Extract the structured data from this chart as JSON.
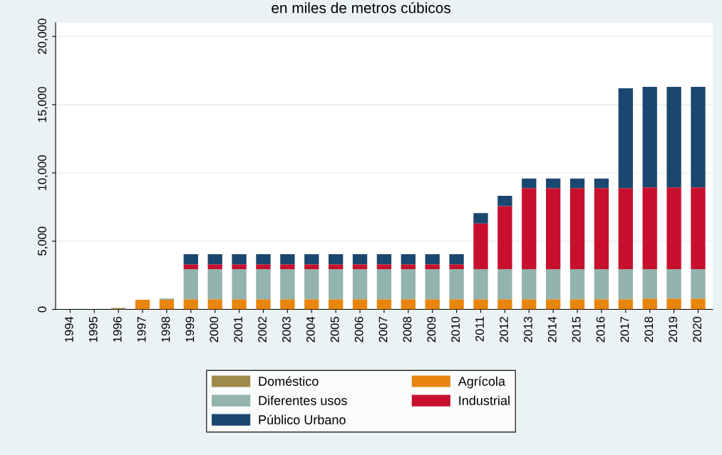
{
  "chart_data": {
    "type": "bar",
    "title": "en miles de metros cúbicos",
    "stacked": true,
    "categories": [
      "1994",
      "1995",
      "1996",
      "1997",
      "1998",
      "1999",
      "2000",
      "2001",
      "2002",
      "2003",
      "2004",
      "2005",
      "2006",
      "2007",
      "2008",
      "2009",
      "2010",
      "2011",
      "2012",
      "2013",
      "2014",
      "2015",
      "2016",
      "2017",
      "2018",
      "2019",
      "2020"
    ],
    "series": [
      {
        "name": "Doméstico",
        "color": "#a08a4a",
        "values": [
          0,
          0,
          100,
          0,
          0,
          0,
          0,
          0,
          0,
          0,
          0,
          0,
          0,
          0,
          0,
          0,
          0,
          0,
          0,
          0,
          0,
          0,
          0,
          0,
          0,
          0,
          0
        ]
      },
      {
        "name": "Agrícola",
        "color": "#e8850c",
        "values": [
          0,
          0,
          0,
          700,
          700,
          750,
          750,
          750,
          750,
          750,
          750,
          750,
          750,
          750,
          750,
          750,
          750,
          750,
          750,
          750,
          750,
          750,
          750,
          750,
          800,
          800,
          800
        ]
      },
      {
        "name": "Diferentes usos",
        "color": "#93b3ad",
        "values": [
          0,
          0,
          0,
          0,
          100,
          2200,
          2200,
          2200,
          2200,
          2200,
          2200,
          2200,
          2200,
          2200,
          2200,
          2200,
          2200,
          2200,
          2200,
          2200,
          2200,
          2200,
          2200,
          2200,
          2150,
          2150,
          2150
        ]
      },
      {
        "name": "Industrial",
        "color": "#c8102e",
        "values": [
          0,
          0,
          0,
          0,
          0,
          350,
          350,
          350,
          350,
          350,
          350,
          350,
          350,
          350,
          350,
          350,
          350,
          3350,
          4610,
          5930,
          5930,
          5930,
          5930,
          5930,
          5980,
          5980,
          5980
        ]
      },
      {
        "name": "Público Urbano",
        "color": "#1a476f",
        "values": [
          0,
          0,
          0,
          0,
          0,
          750,
          750,
          750,
          750,
          750,
          750,
          750,
          750,
          750,
          750,
          750,
          750,
          750,
          760,
          700,
          700,
          700,
          700,
          7320,
          7370,
          7370,
          7370
        ]
      }
    ],
    "ylim": [
      0,
      21000
    ],
    "yticks": [
      {
        "value": 0,
        "label": "0"
      },
      {
        "value": 5000,
        "label": "5,000"
      },
      {
        "value": 10000,
        "label": "10,000"
      },
      {
        "value": 15000,
        "label": "15,000"
      },
      {
        "value": 20000,
        "label": "20,000"
      }
    ],
    "grid": "y",
    "legend": "bottom"
  }
}
